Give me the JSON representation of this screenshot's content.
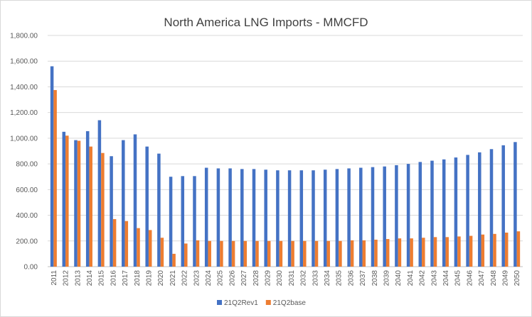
{
  "chart_data": {
    "type": "bar",
    "title": "North America LNG Imports - MMCFD",
    "xlabel": "",
    "ylabel": "",
    "ylim": [
      0,
      1800
    ],
    "y_ticks": [
      "0.00",
      "200.00",
      "400.00",
      "600.00",
      "800.00",
      "1,000.00",
      "1,200.00",
      "1,400.00",
      "1,600.00",
      "1,800.00"
    ],
    "y_tick_values": [
      0,
      200,
      400,
      600,
      800,
      1000,
      1200,
      1400,
      1600,
      1800
    ],
    "grid": true,
    "legend_position": "bottom",
    "categories": [
      "2011",
      "2012",
      "2013",
      "2014",
      "2015",
      "2016",
      "2017",
      "2018",
      "2019",
      "2020",
      "2021",
      "2022",
      "2023",
      "2024",
      "2025",
      "2026",
      "2027",
      "2028",
      "2029",
      "2030",
      "2031",
      "2032",
      "2033",
      "2034",
      "2035",
      "2036",
      "2037",
      "2038",
      "2039",
      "2040",
      "2041",
      "2042",
      "2043",
      "2044",
      "2045",
      "2046",
      "2047",
      "2048",
      "2049",
      "2050"
    ],
    "series": [
      {
        "name": "21Q2Rev1",
        "color": "#4472c4",
        "values": [
          1560,
          1050,
          985,
          1055,
          1140,
          860,
          985,
          1030,
          935,
          880,
          700,
          705,
          705,
          770,
          765,
          765,
          760,
          760,
          755,
          750,
          750,
          750,
          750,
          755,
          760,
          765,
          770,
          775,
          780,
          790,
          800,
          815,
          825,
          835,
          850,
          870,
          890,
          915,
          945,
          970
        ]
      },
      {
        "name": "21Q2base",
        "color": "#ed7d31",
        "values": [
          1375,
          1020,
          980,
          935,
          885,
          370,
          355,
          300,
          285,
          225,
          100,
          180,
          205,
          200,
          200,
          200,
          200,
          200,
          200,
          200,
          200,
          200,
          200,
          200,
          200,
          205,
          205,
          210,
          215,
          220,
          220,
          225,
          230,
          230,
          235,
          240,
          250,
          255,
          265,
          275
        ]
      }
    ]
  }
}
